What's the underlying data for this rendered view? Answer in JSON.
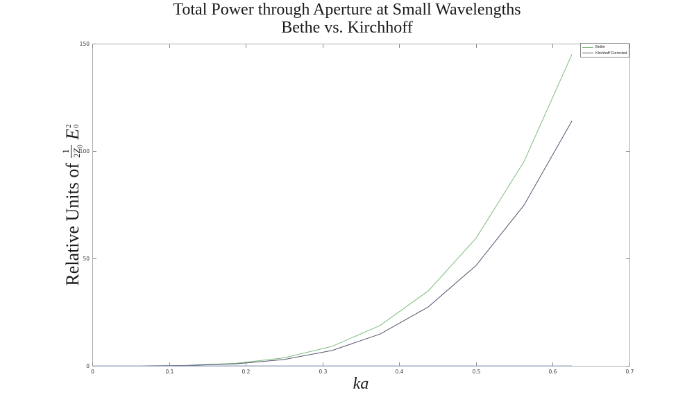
{
  "figure": {
    "title_line1": "Total Power through Aperture at Small Wavelengths",
    "title_line2": "Bethe vs. Kirchhoff",
    "background": "#ffffff"
  },
  "axes": {
    "ylabel_parts": {
      "prefix": "Relative Units of",
      "frac_num": "1",
      "frac_den_coeff": "2",
      "frac_den_var": "Z",
      "frac_den_sub": "0",
      "term_var": "E",
      "term_sup": "2",
      "term_sub": "0"
    },
    "xlabel": "ka"
  },
  "legend": {
    "position": "top-right",
    "entries": [
      {
        "label": "Bethe",
        "color": "#7dbb7d"
      },
      {
        "label": "Kirchhoff Corrected",
        "color": "#52526e"
      }
    ]
  },
  "style": {
    "axis_color": "#aaaaaa",
    "tick_color": "#888888",
    "tick_label_color": "#3a3a3a",
    "title_color": "#1a1a1a"
  },
  "chart_data": {
    "type": "line",
    "title": "Total Power through Aperture at Small Wavelengths — Bethe vs. Kirchhoff",
    "xlabel": "ka",
    "ylabel": "Relative Units of (1/(2 Z_0)) E_0^2",
    "xlim": [
      0,
      0.7
    ],
    "ylim": [
      0,
      150
    ],
    "grid": false,
    "legend_position": "top-right",
    "x_ticks": {
      "values": [
        0,
        0.1,
        0.2,
        0.3,
        0.4,
        0.5,
        0.6,
        0.7
      ],
      "labels": [
        "0",
        "0.1",
        "0.2",
        "0.3",
        "0.4",
        "0.5",
        "0.6",
        "0.7"
      ]
    },
    "y_ticks": {
      "values": [
        0,
        50,
        100,
        150
      ],
      "labels": [
        "0",
        "50",
        "100",
        "150"
      ]
    },
    "x": [
      0,
      0.0625,
      0.125,
      0.1875,
      0.25,
      0.3125,
      0.375,
      0.4375,
      0.5,
      0.5625,
      0.625
    ],
    "series": [
      {
        "name": "Bethe",
        "color": "#7dbb7d",
        "values": [
          0,
          0.01,
          0.23,
          1.17,
          3.71,
          9.06,
          18.79,
          34.79,
          59.38,
          95.07,
          145
        ]
      },
      {
        "name": "Kirchhoff Corrected",
        "color": "#52526e",
        "values": [
          0,
          0.01,
          0.18,
          0.92,
          2.92,
          7.12,
          14.78,
          27.37,
          46.69,
          74.79,
          114
        ]
      },
      {
        "name": "unlabeled near-zero line",
        "color": "#96a6c8",
        "values": [
          0,
          0,
          0,
          0,
          0,
          0,
          0,
          0,
          0,
          0,
          0
        ]
      }
    ]
  }
}
